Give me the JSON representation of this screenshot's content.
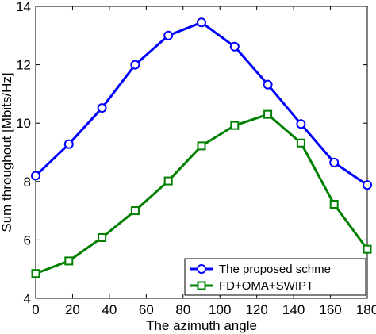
{
  "chart_data": {
    "type": "line",
    "title": "",
    "xlabel": "The azimuth angle",
    "ylabel": "Sum throughout [Mbits/Hz]",
    "xlim": [
      0,
      180
    ],
    "ylim": [
      4,
      14
    ],
    "xticks": [
      0,
      20,
      40,
      60,
      80,
      100,
      120,
      140,
      160,
      180
    ],
    "yticks": [
      4,
      6,
      8,
      10,
      12,
      14
    ],
    "grid": false,
    "legend_position": "bottom-right",
    "x": [
      0,
      18,
      36,
      54,
      72,
      90,
      108,
      126,
      144,
      162,
      180
    ],
    "series": [
      {
        "name": "The proposed schme",
        "color": "#0000ff",
        "marker": "circle",
        "values": [
          8.2,
          9.28,
          10.52,
          12.0,
          13.0,
          13.45,
          12.62,
          11.32,
          9.97,
          8.65,
          7.88
        ]
      },
      {
        "name": "FD+OMA+SWIPT",
        "color": "#008000",
        "marker": "square",
        "values": [
          4.85,
          5.28,
          6.08,
          7.0,
          8.02,
          9.22,
          9.92,
          10.3,
          9.32,
          7.22,
          5.68
        ]
      }
    ]
  }
}
